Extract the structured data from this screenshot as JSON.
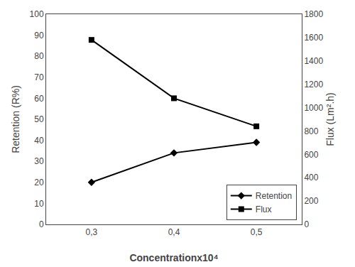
{
  "chart_data": {
    "type": "line",
    "xlabel": "Concentrationx10⁴",
    "ylabel": "Retention (R%)",
    "y2label": "Flux (Lm².h)",
    "x": [
      0.3,
      0.4,
      0.5
    ],
    "series": [
      {
        "name": "Retention",
        "color": "black",
        "marker": "diamond",
        "values": [
          20,
          34,
          39
        ]
      },
      {
        "name": "Flux",
        "color": "black",
        "marker": "square",
        "axis": "y2",
        "values": [
          1580,
          1080,
          840
        ]
      }
    ],
    "xlim": [
      0.245,
      0.555
    ],
    "xticks": [
      {
        "value": 0.3,
        "label": "0,3"
      },
      {
        "value": 0.4,
        "label": "0,4"
      },
      {
        "value": 0.5,
        "label": "0,5"
      }
    ],
    "ylim": [
      0,
      100
    ],
    "yticks": [
      0,
      10,
      20,
      30,
      40,
      50,
      60,
      70,
      80,
      90,
      100
    ],
    "y2lim": [
      0,
      1800
    ],
    "y2ticks": [
      0,
      200,
      400,
      600,
      800,
      1000,
      1200,
      1400,
      1600,
      1800
    ],
    "legend": "lower right",
    "grid": false
  }
}
